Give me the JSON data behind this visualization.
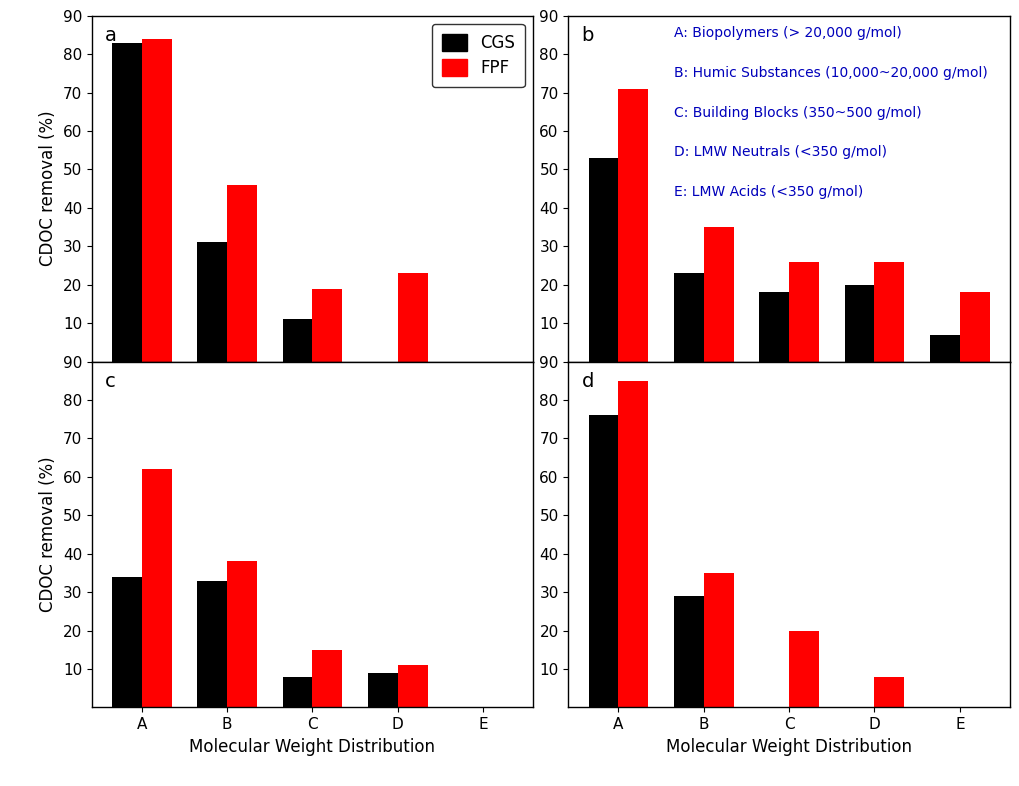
{
  "categories": [
    "A",
    "B",
    "C",
    "D",
    "E"
  ],
  "panels": [
    {
      "label": "a",
      "cgs": [
        83,
        31,
        11,
        0,
        0
      ],
      "fpf": [
        84,
        46,
        19,
        23,
        0
      ]
    },
    {
      "label": "b",
      "cgs": [
        53,
        23,
        18,
        20,
        7
      ],
      "fpf": [
        71,
        35,
        26,
        26,
        18
      ]
    },
    {
      "label": "c",
      "cgs": [
        34,
        33,
        8,
        9,
        0
      ],
      "fpf": [
        62,
        38,
        15,
        11,
        0
      ]
    },
    {
      "label": "d",
      "cgs": [
        76,
        29,
        0,
        0,
        0
      ],
      "fpf": [
        85,
        35,
        20,
        8,
        0
      ]
    }
  ],
  "ylabel": "CDOC removal (%)",
  "xlabel": "Molecular Weight Distribution",
  "bar_width": 0.35,
  "color_cgs": "#000000",
  "color_fpf": "#ff0000",
  "legend_labels": [
    "CGS",
    "FPF"
  ],
  "annotation_text": [
    "A: Biopolymers (> 20,000 g/mol)",
    "B: Humic Substances (10,000~20,000 g/mol)",
    "C: Building Blocks (350~500 g/mol)",
    "D: LMW Neutrals (<350 g/mol)",
    "E: LMW Acids (<350 g/mol)"
  ],
  "annotation_color": "#0000bb",
  "background_color": "#ffffff",
  "axis_label_color": "#000000",
  "panel_label_fontsize": 14,
  "label_fontsize": 12,
  "tick_fontsize": 11,
  "annot_fontsize": 10
}
